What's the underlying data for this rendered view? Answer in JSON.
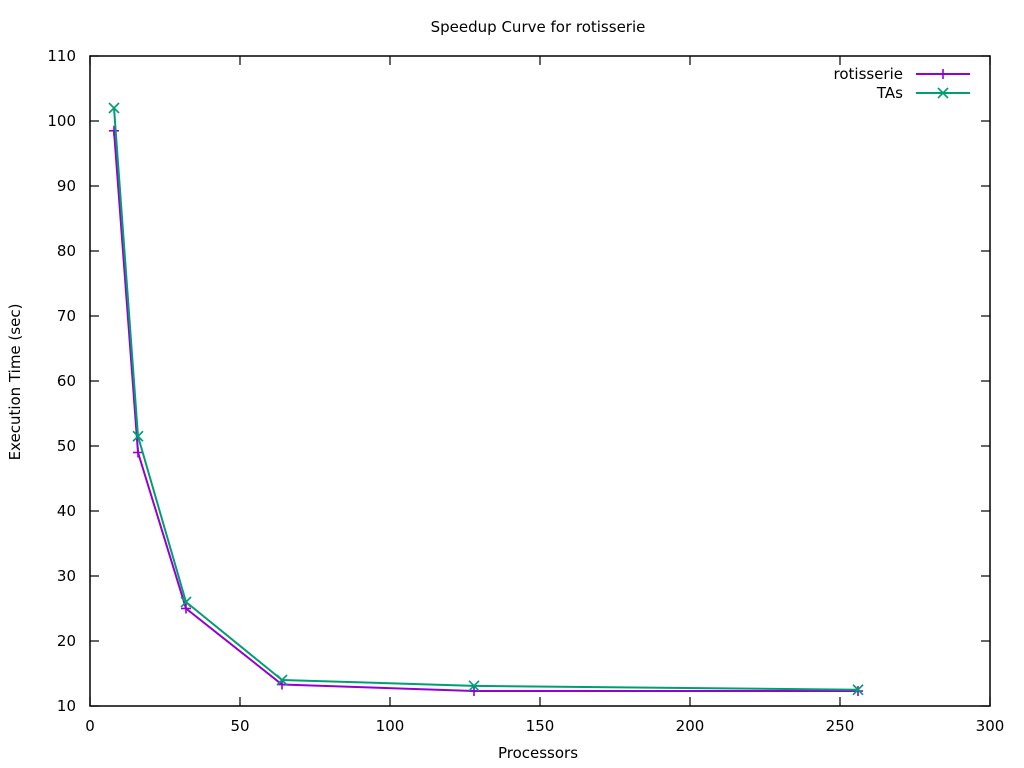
{
  "chart_data": {
    "type": "line",
    "title": "Speedup Curve for rotisserie",
    "xlabel": "Processors",
    "ylabel": "Execution Time (sec)",
    "xlim": [
      0,
      300
    ],
    "ylim": [
      10,
      110
    ],
    "xticks": [
      0,
      50,
      100,
      150,
      200,
      250,
      300
    ],
    "yticks": [
      10,
      20,
      30,
      40,
      50,
      60,
      70,
      80,
      90,
      100,
      110
    ],
    "grid": false,
    "legend_position": "top-right",
    "series": [
      {
        "name": "rotisserie",
        "color": "#9400d3",
        "marker": "plus",
        "x": [
          8,
          16,
          32,
          64,
          128,
          256
        ],
        "y": [
          98.5,
          49,
          25,
          13.3,
          12.3,
          12.3
        ]
      },
      {
        "name": "TAs",
        "color": "#009e73",
        "marker": "cross",
        "x": [
          8,
          16,
          32,
          64,
          128,
          256
        ],
        "y": [
          102,
          51.5,
          26,
          14,
          13.1,
          12.5
        ]
      }
    ]
  }
}
